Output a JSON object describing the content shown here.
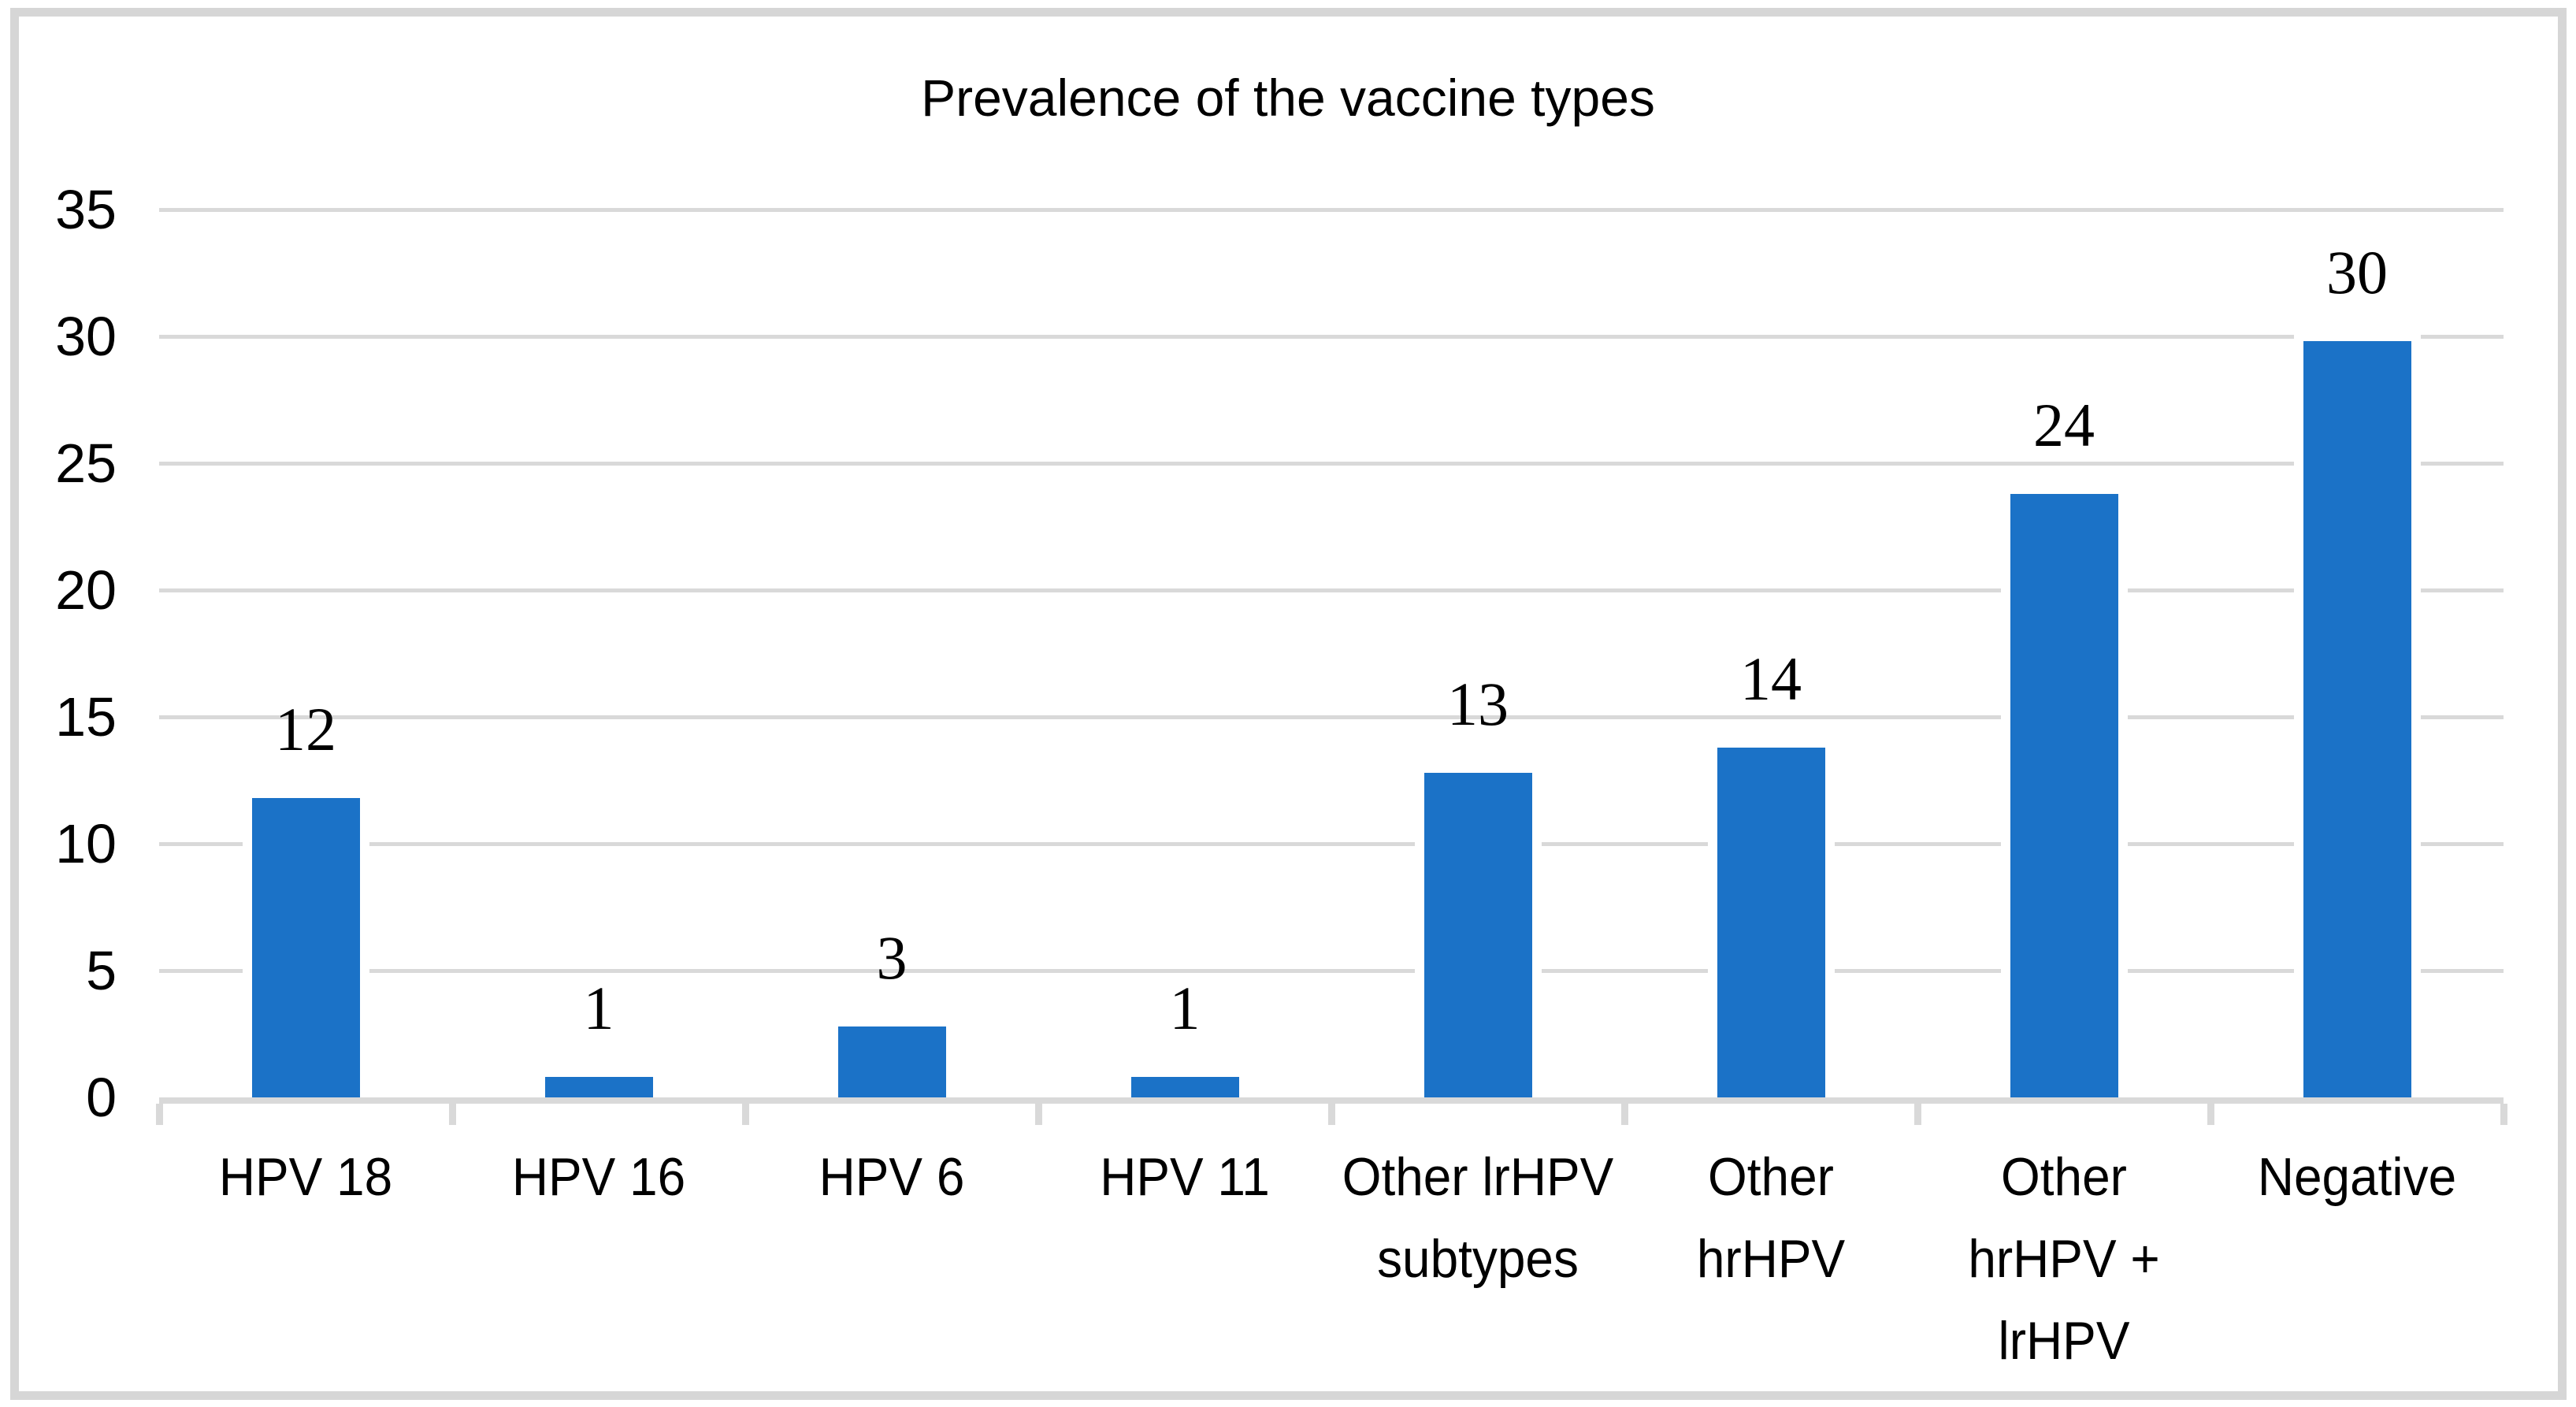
{
  "figure": {
    "background": "#FFFFFF",
    "border_color": "#D6D6D6"
  },
  "chart_data": {
    "type": "bar",
    "title": "Prevalence of the vaccine types",
    "categories": [
      "HPV 18",
      "HPV 16",
      "HPV 6",
      "HPV 11",
      "Other lrHPV subtypes",
      "Other hrHPV",
      "Other hrHPV + lrHPV",
      "Negative"
    ],
    "category_lines": [
      [
        "HPV 18"
      ],
      [
        "HPV 16"
      ],
      [
        "HPV 6"
      ],
      [
        "HPV 11"
      ],
      [
        "Other lrHPV",
        "subtypes"
      ],
      [
        "Other",
        "hrHPV"
      ],
      [
        "Other",
        "hrHPV +",
        "lrHPV"
      ],
      [
        "Negative"
      ]
    ],
    "values": [
      12,
      1,
      3,
      1,
      13,
      14,
      24,
      30
    ],
    "bar_heights_drawn": [
      11.8,
      0.8,
      2.8,
      0.8,
      12.8,
      13.8,
      23.8,
      29.8
    ],
    "yticks": [
      0,
      5,
      10,
      15,
      20,
      25,
      30,
      35
    ],
    "ylim": [
      0,
      35
    ],
    "xlabel": "",
    "ylabel": "",
    "legend": null,
    "grid": "horizontal",
    "bar_color": "#1B72C7",
    "gridline_color": "#D9D9D9",
    "axis_line_color": "#D9D9D9",
    "text_color": "#000000"
  }
}
